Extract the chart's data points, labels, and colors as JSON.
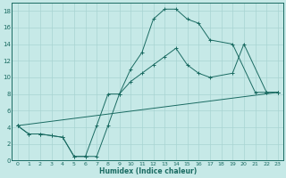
{
  "xlabel": "Humidex (Indice chaleur)",
  "background_color": "#c6e9e7",
  "grid_color": "#a8d4d2",
  "line_color": "#1a6b62",
  "xlim": [
    -0.5,
    23.5
  ],
  "ylim": [
    0,
    19
  ],
  "xticks": [
    0,
    1,
    2,
    3,
    4,
    5,
    6,
    7,
    8,
    9,
    10,
    11,
    12,
    13,
    14,
    15,
    16,
    17,
    18,
    19,
    20,
    21,
    22,
    23
  ],
  "yticks": [
    0,
    2,
    4,
    6,
    8,
    10,
    12,
    14,
    16,
    18
  ],
  "line1_x": [
    0,
    1,
    2,
    3,
    4,
    5,
    6,
    7,
    8,
    9,
    10,
    11,
    12,
    13,
    14,
    15,
    16,
    17,
    19,
    21,
    22,
    23
  ],
  "line1_y": [
    4.2,
    3.2,
    3.2,
    3.0,
    2.8,
    0.5,
    0.5,
    0.5,
    4.2,
    8.0,
    11.0,
    13.0,
    17.0,
    18.2,
    18.2,
    17.0,
    16.5,
    14.5,
    14.0,
    8.2,
    8.2,
    8.2
  ],
  "line2_x": [
    0,
    1,
    2,
    3,
    4,
    5,
    6,
    7,
    8,
    9,
    10,
    11,
    12,
    13,
    14,
    15,
    16,
    17,
    19,
    20,
    22,
    23
  ],
  "line2_y": [
    4.2,
    3.2,
    3.2,
    3.0,
    2.8,
    0.5,
    0.5,
    4.2,
    8.0,
    8.0,
    9.5,
    10.5,
    11.5,
    12.5,
    13.5,
    11.5,
    10.5,
    10.0,
    10.5,
    14.0,
    8.2,
    8.2
  ],
  "line3_x": [
    0,
    23
  ],
  "line3_y": [
    4.2,
    8.2
  ]
}
